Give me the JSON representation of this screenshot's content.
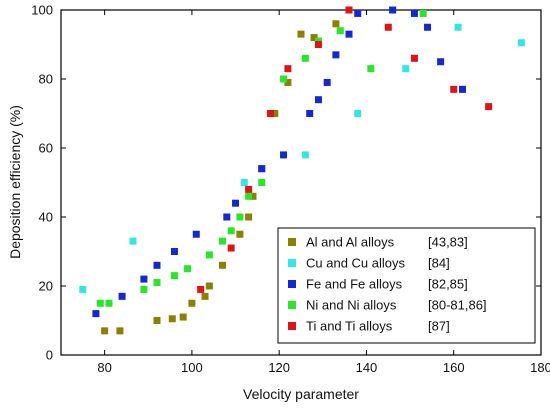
{
  "chart_data": {
    "type": "scatter",
    "xlabel": "Velocity parameter",
    "ylabel": "Deposition efficiency (%)",
    "xlim": [
      70,
      180
    ],
    "ylim": [
      0,
      100
    ],
    "xticks": [
      80,
      100,
      120,
      140,
      160,
      180
    ],
    "yticks": [
      0,
      20,
      40,
      60,
      80,
      100
    ],
    "legend_position": "lower-right",
    "series": [
      {
        "name": "Al and Al alloys",
        "ref": "[43,83]",
        "color": "#8b8000",
        "points": [
          [
            80,
            7
          ],
          [
            83.5,
            7
          ],
          [
            92,
            10
          ],
          [
            95.5,
            10.5
          ],
          [
            98,
            11
          ],
          [
            100,
            15
          ],
          [
            103,
            17
          ],
          [
            104,
            20
          ],
          [
            107,
            26
          ],
          [
            111,
            35
          ],
          [
            113,
            40
          ],
          [
            114,
            46
          ],
          [
            116,
            54
          ],
          [
            119,
            70
          ],
          [
            122,
            79
          ],
          [
            125,
            93
          ],
          [
            128,
            92
          ],
          [
            133,
            96
          ]
        ]
      },
      {
        "name": "Cu and Cu alloys",
        "ref": "[84]",
        "color": "#33e6e6",
        "points": [
          [
            75,
            19
          ],
          [
            86.5,
            33
          ],
          [
            112,
            50
          ],
          [
            126,
            58
          ],
          [
            138,
            70
          ],
          [
            149,
            83
          ],
          [
            161,
            95
          ],
          [
            175.5,
            90.5
          ]
        ]
      },
      {
        "name": "Fe and Fe alloys",
        "ref": "[82,85]",
        "color": "#1428d2",
        "points": [
          [
            78,
            12
          ],
          [
            84,
            17
          ],
          [
            89,
            22
          ],
          [
            92,
            26
          ],
          [
            96,
            30
          ],
          [
            101,
            35
          ],
          [
            108,
            40
          ],
          [
            110,
            44
          ],
          [
            116,
            54
          ],
          [
            121,
            58
          ],
          [
            127,
            70
          ],
          [
            129,
            74
          ],
          [
            131,
            79
          ],
          [
            133,
            87
          ],
          [
            136,
            93
          ],
          [
            138,
            99
          ],
          [
            146,
            100
          ],
          [
            151,
            99
          ],
          [
            154,
            95
          ],
          [
            157,
            85
          ],
          [
            162,
            77
          ]
        ]
      },
      {
        "name": "Ni and Ni alloys",
        "ref": "[80-81,86]",
        "color": "#28e628",
        "points": [
          [
            79,
            15
          ],
          [
            81,
            15
          ],
          [
            89,
            19
          ],
          [
            92,
            21
          ],
          [
            96,
            23
          ],
          [
            99,
            25
          ],
          [
            104,
            29
          ],
          [
            107,
            33
          ],
          [
            109,
            36
          ],
          [
            111,
            40
          ],
          [
            113,
            46
          ],
          [
            116,
            50
          ],
          [
            121,
            80
          ],
          [
            126,
            86
          ],
          [
            129,
            91
          ],
          [
            134,
            94
          ],
          [
            141,
            83
          ],
          [
            153,
            99
          ]
        ]
      },
      {
        "name": "Ti and Ti alloys",
        "ref": "[87]",
        "color": "#e01414",
        "points": [
          [
            102,
            19
          ],
          [
            109,
            31
          ],
          [
            113,
            48
          ],
          [
            118,
            70
          ],
          [
            122,
            83
          ],
          [
            129,
            90
          ],
          [
            136,
            100
          ],
          [
            145,
            95
          ],
          [
            151,
            86
          ],
          [
            160,
            77
          ],
          [
            168,
            72
          ]
        ]
      }
    ]
  }
}
